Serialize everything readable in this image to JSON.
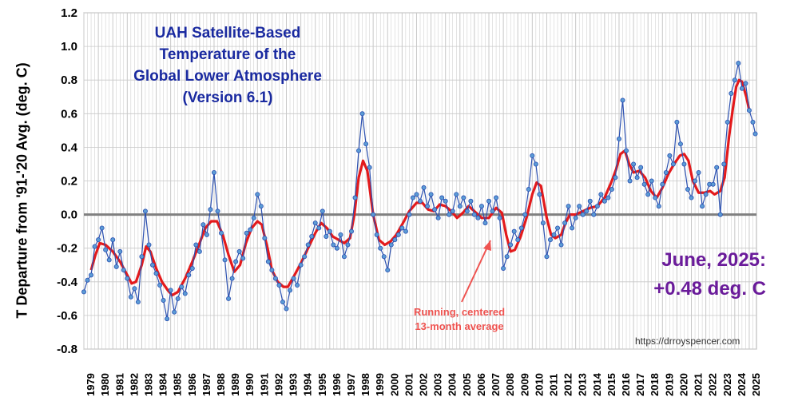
{
  "colors": {
    "monthly_line": "#2a4fb0",
    "monthly_marker_fill": "#5b9bd5",
    "running_avg": "#e31a1c",
    "title": "#1a2aa0",
    "month_label": "#6a1b9a",
    "annotation": "#ef5350",
    "zero_line": "#808080",
    "grid": "#c8c8c8"
  },
  "title_lines": [
    "UAH Satellite-Based",
    "Temperature of the",
    "Global Lower Atmosphere",
    "(Version 6.1)"
  ],
  "month_label_lines": [
    "June, 2025:",
    "+0.48 deg. C"
  ],
  "annotation_lines": [
    "Running, centered",
    "13-month average"
  ],
  "credit": "https://drroyspencer.com",
  "chart_data": {
    "type": "line",
    "ylabel": "T Departure from '91-'20 Avg. (deg. C)",
    "xlabel": "",
    "ylim": [
      -0.8,
      1.2
    ],
    "yticks": [
      "1.2",
      "1.0",
      "0.8",
      "0.6",
      "0.4",
      "0.2",
      "0.0",
      "-0.2",
      "-0.4",
      "-0.6",
      "-0.8"
    ],
    "xlim": [
      1979,
      2025.5
    ],
    "x_tick_labels": [
      "1979",
      "1980",
      "1981",
      "1982",
      "1983",
      "1984",
      "1985",
      "1986",
      "1987",
      "1988",
      "1989",
      "1990",
      "1991",
      "1992",
      "1993",
      "1994",
      "1995",
      "1996",
      "1997",
      "1998",
      "1999",
      "2000",
      "2001",
      "2002",
      "2003",
      "2004",
      "2005",
      "2006",
      "2007",
      "2008",
      "2009",
      "2010",
      "2011",
      "2012",
      "2013",
      "2014",
      "2015",
      "2016",
      "2017",
      "2018",
      "2019",
      "2020",
      "2021",
      "2022",
      "2023",
      "2024",
      "2025"
    ],
    "grid": true,
    "series": [
      {
        "name": "",
        "style": "monthly",
        "x": [
          1979.0,
          1979.25,
          1979.5,
          1979.75,
          1980.0,
          1980.25,
          1980.5,
          1980.75,
          1981.0,
          1981.25,
          1981.5,
          1981.75,
          1982.0,
          1982.25,
          1982.5,
          1982.75,
          1983.0,
          1983.25,
          1983.5,
          1983.75,
          1984.0,
          1984.25,
          1984.5,
          1984.75,
          1985.0,
          1985.25,
          1985.5,
          1985.75,
          1986.0,
          1986.25,
          1986.5,
          1986.75,
          1987.0,
          1987.25,
          1987.5,
          1987.75,
          1988.0,
          1988.25,
          1988.5,
          1988.75,
          1989.0,
          1989.25,
          1989.5,
          1989.75,
          1990.0,
          1990.25,
          1990.5,
          1990.75,
          1991.0,
          1991.25,
          1991.5,
          1991.75,
          1992.0,
          1992.25,
          1992.5,
          1992.75,
          1993.0,
          1993.25,
          1993.5,
          1993.75,
          1994.0,
          1994.25,
          1994.5,
          1994.75,
          1995.0,
          1995.25,
          1995.5,
          1995.75,
          1996.0,
          1996.25,
          1996.5,
          1996.75,
          1997.0,
          1997.25,
          1997.5,
          1997.75,
          1998.0,
          1998.25,
          1998.5,
          1998.75,
          1999.0,
          1999.25,
          1999.5,
          1999.75,
          2000.0,
          2000.25,
          2000.5,
          2000.75,
          2001.0,
          2001.25,
          2001.5,
          2001.75,
          2002.0,
          2002.25,
          2002.5,
          2002.75,
          2003.0,
          2003.25,
          2003.5,
          2003.75,
          2004.0,
          2004.25,
          2004.5,
          2004.75,
          2005.0,
          2005.25,
          2005.5,
          2005.75,
          2006.0,
          2006.25,
          2006.5,
          2006.75,
          2007.0,
          2007.25,
          2007.5,
          2007.75,
          2008.0,
          2008.25,
          2008.5,
          2008.75,
          2009.0,
          2009.25,
          2009.5,
          2009.75,
          2010.0,
          2010.25,
          2010.5,
          2010.75,
          2011.0,
          2011.25,
          2011.5,
          2011.75,
          2012.0,
          2012.25,
          2012.5,
          2012.75,
          2013.0,
          2013.25,
          2013.5,
          2013.75,
          2014.0,
          2014.25,
          2014.5,
          2014.75,
          2015.0,
          2015.25,
          2015.5,
          2015.75,
          2016.0,
          2016.25,
          2016.5,
          2016.75,
          2017.0,
          2017.25,
          2017.5,
          2017.75,
          2018.0,
          2018.25,
          2018.5,
          2018.75,
          2019.0,
          2019.25,
          2019.5,
          2019.75,
          2020.0,
          2020.25,
          2020.5,
          2020.75,
          2021.0,
          2021.25,
          2021.5,
          2021.75,
          2022.0,
          2022.25,
          2022.5,
          2022.75,
          2023.0,
          2023.25,
          2023.5,
          2023.75,
          2024.0,
          2024.25,
          2024.5,
          2024.75,
          2025.0,
          2025.25,
          2025.42
        ],
        "y": [
          -0.46,
          -0.39,
          -0.36,
          -0.19,
          -0.15,
          -0.08,
          -0.21,
          -0.27,
          -0.15,
          -0.31,
          -0.22,
          -0.33,
          -0.38,
          -0.49,
          -0.44,
          -0.52,
          -0.25,
          0.02,
          -0.18,
          -0.3,
          -0.35,
          -0.42,
          -0.51,
          -0.62,
          -0.45,
          -0.58,
          -0.5,
          -0.43,
          -0.47,
          -0.36,
          -0.32,
          -0.18,
          -0.22,
          -0.06,
          -0.12,
          0.03,
          0.25,
          0.02,
          -0.11,
          -0.27,
          -0.5,
          -0.38,
          -0.28,
          -0.22,
          -0.26,
          -0.11,
          -0.09,
          -0.02,
          0.12,
          0.05,
          -0.14,
          -0.28,
          -0.33,
          -0.38,
          -0.42,
          -0.52,
          -0.56,
          -0.45,
          -0.38,
          -0.42,
          -0.3,
          -0.25,
          -0.18,
          -0.13,
          -0.05,
          -0.08,
          0.02,
          -0.13,
          -0.1,
          -0.18,
          -0.2,
          -0.12,
          -0.25,
          -0.18,
          -0.1,
          0.1,
          0.38,
          0.6,
          0.42,
          0.28,
          0.0,
          -0.12,
          -0.2,
          -0.25,
          -0.33,
          -0.18,
          -0.15,
          -0.12,
          -0.08,
          -0.1,
          0.0,
          0.1,
          0.12,
          0.08,
          0.16,
          0.05,
          0.12,
          0.03,
          -0.02,
          0.1,
          0.08,
          0.0,
          0.02,
          0.12,
          0.05,
          0.1,
          0.02,
          0.08,
          0.0,
          -0.02,
          0.05,
          -0.05,
          0.08,
          0.02,
          0.1,
          -0.02,
          -0.32,
          -0.25,
          -0.18,
          -0.1,
          -0.15,
          -0.08,
          0.0,
          0.15,
          0.35,
          0.3,
          0.12,
          -0.05,
          -0.25,
          -0.15,
          -0.12,
          -0.08,
          -0.18,
          -0.05,
          0.05,
          -0.08,
          -0.02,
          0.05,
          0.0,
          0.02,
          0.08,
          0.0,
          0.05,
          0.12,
          0.08,
          0.1,
          0.15,
          0.22,
          0.45,
          0.68,
          0.38,
          0.2,
          0.3,
          0.22,
          0.28,
          0.18,
          0.12,
          0.2,
          0.1,
          0.05,
          0.18,
          0.25,
          0.35,
          0.3,
          0.55,
          0.42,
          0.3,
          0.15,
          0.1,
          0.2,
          0.25,
          0.05,
          0.12,
          0.18,
          0.18,
          0.28,
          0.0,
          0.3,
          0.55,
          0.72,
          0.8,
          0.9,
          0.75,
          0.78,
          0.62,
          0.55,
          0.48
        ]
      },
      {
        "name": "",
        "style": "running_avg",
        "x": [
          1979.5,
          1979.8,
          1980.1,
          1980.5,
          1981.0,
          1981.5,
          1982.0,
          1982.3,
          1982.6,
          1983.0,
          1983.3,
          1983.6,
          1984.0,
          1984.4,
          1984.8,
          1985.1,
          1985.5,
          1986.0,
          1986.5,
          1987.0,
          1987.4,
          1987.8,
          1988.2,
          1988.6,
          1989.0,
          1989.4,
          1989.8,
          1990.2,
          1990.6,
          1991.0,
          1991.3,
          1991.7,
          1992.0,
          1992.4,
          1992.8,
          1993.1,
          1993.5,
          1994.0,
          1994.5,
          1995.0,
          1995.4,
          1995.8,
          1996.2,
          1996.6,
          1997.0,
          1997.4,
          1997.7,
          1998.0,
          1998.3,
          1998.6,
          1999.0,
          1999.4,
          1999.8,
          2000.2,
          2000.6,
          2001.0,
          2001.5,
          2002.0,
          2002.4,
          2002.8,
          2003.2,
          2003.6,
          2004.0,
          2004.4,
          2004.8,
          2005.2,
          2005.6,
          2006.0,
          2006.5,
          2007.0,
          2007.5,
          2007.9,
          2008.2,
          2008.5,
          2008.8,
          2009.2,
          2009.6,
          2010.0,
          2010.3,
          2010.6,
          2011.0,
          2011.3,
          2011.6,
          2012.0,
          2012.3,
          2012.6,
          2013.0,
          2013.5,
          2014.0,
          2014.5,
          2015.0,
          2015.5,
          2015.8,
          2016.1,
          2016.4,
          2016.7,
          2017.0,
          2017.4,
          2017.8,
          2018.2,
          2018.6,
          2019.0,
          2019.4,
          2019.8,
          2020.2,
          2020.5,
          2020.8,
          2021.1,
          2021.5,
          2021.9,
          2022.3,
          2022.6,
          2023.0,
          2023.3,
          2023.6,
          2023.9,
          2024.1,
          2024.3,
          2024.5,
          2024.8,
          2025.0
        ],
        "y": [
          -0.33,
          -0.24,
          -0.17,
          -0.18,
          -0.22,
          -0.28,
          -0.36,
          -0.41,
          -0.4,
          -0.3,
          -0.19,
          -0.22,
          -0.32,
          -0.4,
          -0.45,
          -0.48,
          -0.46,
          -0.38,
          -0.28,
          -0.17,
          -0.08,
          -0.04,
          -0.04,
          -0.12,
          -0.24,
          -0.34,
          -0.3,
          -0.17,
          -0.08,
          -0.04,
          -0.06,
          -0.2,
          -0.33,
          -0.4,
          -0.43,
          -0.43,
          -0.37,
          -0.29,
          -0.2,
          -0.11,
          -0.05,
          -0.08,
          -0.13,
          -0.15,
          -0.17,
          -0.14,
          0.0,
          0.22,
          0.32,
          0.26,
          0.0,
          -0.15,
          -0.18,
          -0.16,
          -0.12,
          -0.06,
          0.02,
          0.07,
          0.07,
          0.03,
          0.02,
          0.06,
          0.05,
          0.02,
          -0.02,
          0.01,
          0.05,
          0.02,
          -0.02,
          -0.02,
          0.04,
          0.01,
          -0.12,
          -0.22,
          -0.21,
          -0.13,
          -0.02,
          0.12,
          0.19,
          0.17,
          -0.02,
          -0.12,
          -0.14,
          -0.12,
          -0.05,
          0.0,
          0.0,
          0.02,
          0.04,
          0.05,
          0.1,
          0.2,
          0.27,
          0.36,
          0.38,
          0.3,
          0.25,
          0.26,
          0.22,
          0.14,
          0.1,
          0.16,
          0.24,
          0.3,
          0.35,
          0.36,
          0.32,
          0.2,
          0.13,
          0.13,
          0.14,
          0.12,
          0.14,
          0.22,
          0.46,
          0.65,
          0.76,
          0.8,
          0.79,
          0.7,
          0.62
        ]
      }
    ]
  }
}
